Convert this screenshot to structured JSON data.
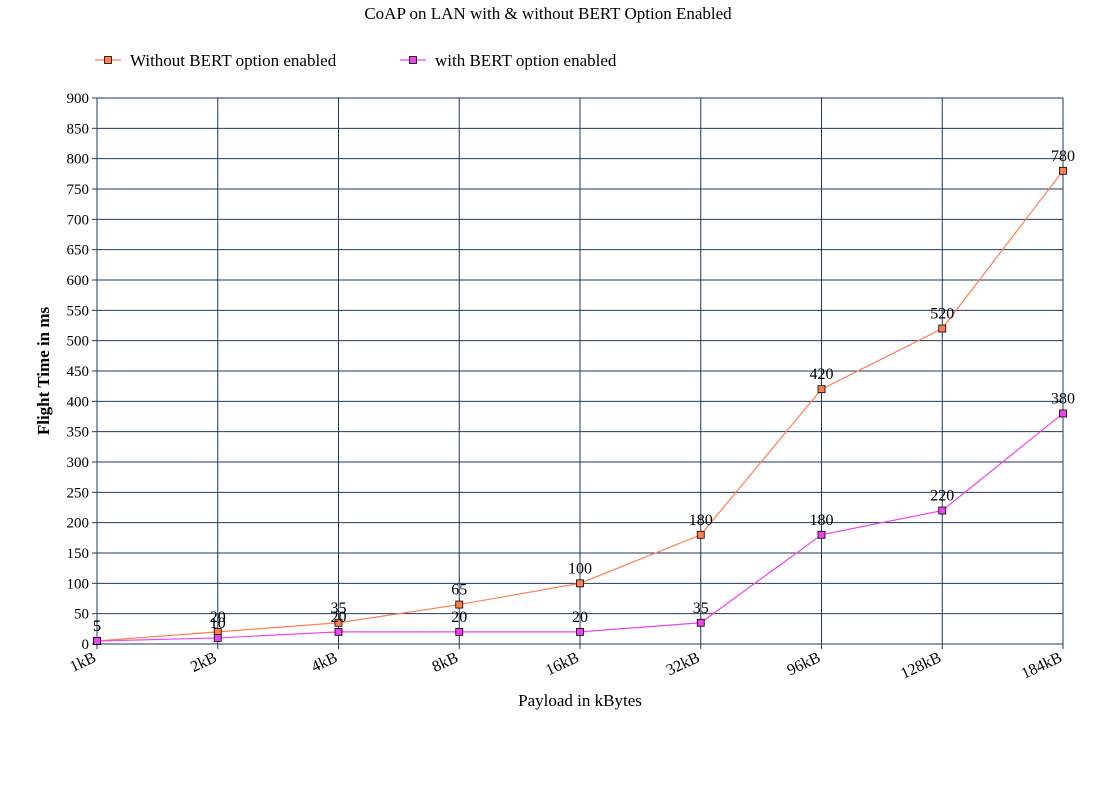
{
  "chart_data": {
    "type": "line",
    "title": "CoAP on LAN with & without BERT Option Enabled",
    "xlabel": "Payload in kBytes",
    "ylabel": "Flight Time in ms",
    "categories": [
      "1kB",
      "2kB",
      "4kB",
      "8kB",
      "16kB",
      "32kB",
      "96kB",
      "128kB",
      "184kB"
    ],
    "ylim": [
      0,
      900
    ],
    "ytick_step": 50,
    "grid": true,
    "legend_position": "top",
    "series": [
      {
        "name": "Without BERT option enabled",
        "color": "#ff7f50",
        "values": [
          5,
          20,
          35,
          65,
          100,
          180,
          420,
          520,
          780
        ]
      },
      {
        "name": "with BERT option enabled",
        "color": "#ee44ee",
        "values": [
          5,
          10,
          20,
          20,
          20,
          35,
          180,
          220,
          380
        ]
      }
    ]
  }
}
